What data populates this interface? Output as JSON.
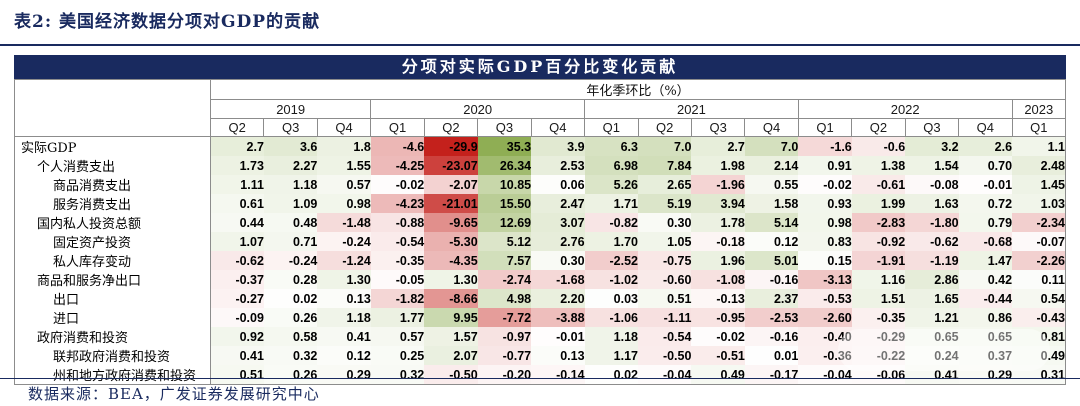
{
  "title": "表2:  美国经济数据分项对GDP的贡献",
  "banner": "分项对实际GDP百分比变化贡献",
  "subheader": "年化季环比（%）",
  "footer": "数据来源：BEA，广发证券发展研究中心",
  "colors": {
    "navy": "#192a5f",
    "border": "#8c8c8c",
    "heat_negative": "#c4211c",
    "heat_positive": "#8fae54",
    "heat_neutral": "#ffffff"
  },
  "chart_data": {
    "type": "table",
    "title": "分项对实际GDP百分比变化贡献",
    "unit_note": "年化季环比（%）",
    "heatmap": {
      "negative_max": 30,
      "positive_max": 35,
      "power": 0.6
    },
    "year_groups": [
      {
        "year": "2019",
        "quarters": [
          "Q2",
          "Q3",
          "Q4"
        ]
      },
      {
        "year": "2020",
        "quarters": [
          "Q1",
          "Q2",
          "Q3",
          "Q4"
        ]
      },
      {
        "year": "2021",
        "quarters": [
          "Q1",
          "Q2",
          "Q3",
          "Q4"
        ]
      },
      {
        "year": "2022",
        "quarters": [
          "Q1",
          "Q2",
          "Q3",
          "Q4"
        ]
      },
      {
        "year": "2023",
        "quarters": [
          "Q1"
        ]
      }
    ],
    "rows": [
      {
        "label": "实际GDP",
        "indent": 0,
        "values": [
          "2.7",
          "3.6",
          "1.8",
          "-4.6",
          "-29.9",
          "35.3",
          "3.9",
          "6.3",
          "7.0",
          "2.7",
          "7.0",
          "-1.6",
          "-0.6",
          "3.2",
          "2.6",
          "1.1"
        ]
      },
      {
        "label": "个人消费支出",
        "indent": 1,
        "values": [
          "1.73",
          "2.27",
          "1.55",
          "-4.25",
          "-23.07",
          "26.34",
          "2.53",
          "6.98",
          "7.84",
          "1.98",
          "2.14",
          "0.91",
          "1.38",
          "1.54",
          "0.70",
          "2.48"
        ]
      },
      {
        "label": "商品消费支出",
        "indent": 2,
        "values": [
          "1.11",
          "1.18",
          "0.57",
          "-0.02",
          "-2.07",
          "10.85",
          "0.06",
          "5.26",
          "2.65",
          "-1.96",
          "0.55",
          "-0.02",
          "-0.61",
          "-0.08",
          "-0.01",
          "1.45"
        ]
      },
      {
        "label": "服务消费支出",
        "indent": 2,
        "values": [
          "0.61",
          "1.09",
          "0.98",
          "-4.23",
          "-21.01",
          "15.50",
          "2.47",
          "1.71",
          "5.19",
          "3.94",
          "1.58",
          "0.93",
          "1.99",
          "1.63",
          "0.72",
          "1.03"
        ]
      },
      {
        "label": "国内私人投资总额",
        "indent": 1,
        "values": [
          "0.44",
          "0.48",
          "-1.48",
          "-0.88",
          "-9.65",
          "12.69",
          "3.07",
          "-0.82",
          "0.30",
          "1.78",
          "5.14",
          "0.98",
          "-2.83",
          "-1.80",
          "0.79",
          "-2.34"
        ]
      },
      {
        "label": "固定资产投资",
        "indent": 2,
        "values": [
          "1.07",
          "0.71",
          "-0.24",
          "-0.54",
          "-5.30",
          "5.12",
          "2.76",
          "1.70",
          "1.05",
          "-0.18",
          "0.12",
          "0.83",
          "-0.92",
          "-0.62",
          "-0.68",
          "-0.07"
        ]
      },
      {
        "label": "私人库存变动",
        "indent": 2,
        "values": [
          "-0.62",
          "-0.24",
          "-1.24",
          "-0.35",
          "-4.35",
          "7.57",
          "0.30",
          "-2.52",
          "-0.75",
          "1.96",
          "5.01",
          "0.15",
          "-1.91",
          "-1.19",
          "1.47",
          "-2.26"
        ]
      },
      {
        "label": "商品和服务净出口",
        "indent": 1,
        "values": [
          "-0.37",
          "0.28",
          "1.30",
          "-0.05",
          "1.30",
          "-2.74",
          "-1.68",
          "-1.02",
          "-0.60",
          "-1.08",
          "-0.16",
          "-3.13",
          "1.16",
          "2.86",
          "0.42",
          "0.11"
        ]
      },
      {
        "label": "出口",
        "indent": 2,
        "values": [
          "-0.27",
          "0.02",
          "0.13",
          "-1.82",
          "-8.66",
          "4.98",
          "2.20",
          "0.03",
          "0.51",
          "-0.13",
          "2.37",
          "-0.53",
          "1.51",
          "1.65",
          "-0.44",
          "0.54"
        ]
      },
      {
        "label": "进口",
        "indent": 2,
        "values": [
          "-0.09",
          "0.26",
          "1.18",
          "1.77",
          "9.95",
          "-7.72",
          "-3.88",
          "-1.06",
          "-1.11",
          "-0.95",
          "-2.53",
          "-2.60",
          "-0.35",
          "1.21",
          "0.86",
          "-0.43"
        ]
      },
      {
        "label": "政府消费和投资",
        "indent": 1,
        "values": [
          "0.92",
          "0.58",
          "0.41",
          "0.57",
          "1.57",
          "-0.97",
          "-0.01",
          "1.18",
          "-0.54",
          "-0.02",
          "-0.16",
          "-0.40",
          "-0.29",
          "0.65",
          "0.65",
          "0.81"
        ]
      },
      {
        "label": "联邦政府消费和投资",
        "indent": 2,
        "values": [
          "0.41",
          "0.32",
          "0.12",
          "0.25",
          "2.07",
          "-0.77",
          "0.13",
          "1.17",
          "-0.50",
          "-0.51",
          "0.01",
          "-0.36",
          "-0.22",
          "0.24",
          "0.37",
          "0.49"
        ]
      },
      {
        "label": "州和地方政府消费和投资",
        "indent": 2,
        "values": [
          "0.51",
          "0.26",
          "0.29",
          "0.32",
          "-0.50",
          "-0.20",
          "-0.14",
          "0.02",
          "-0.04",
          "0.49",
          "-0.17",
          "-0.04",
          "-0.06",
          "0.41",
          "0.29",
          "0.31"
        ]
      }
    ]
  }
}
